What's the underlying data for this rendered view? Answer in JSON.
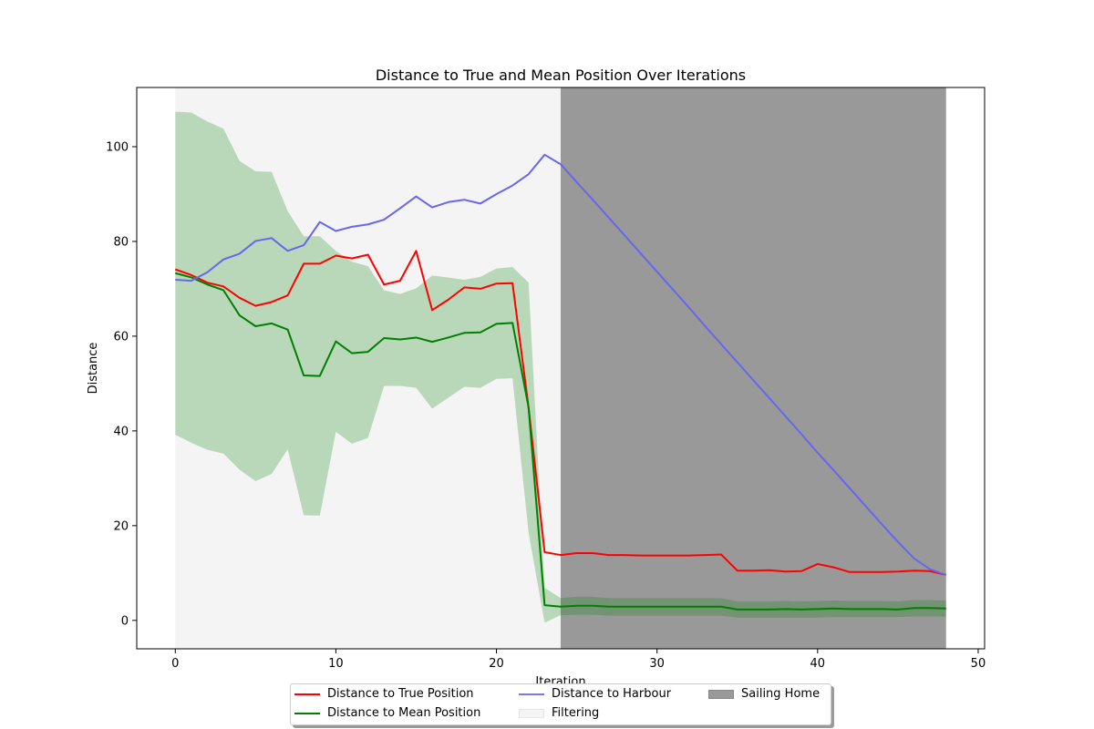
{
  "chart_data": {
    "type": "line",
    "title": "Distance to True and Mean Position Over Iterations",
    "xlabel": "Iteration",
    "ylabel": "Distance",
    "xlim": [
      -2.4,
      50.4
    ],
    "ylim": [
      -6,
      112.5
    ],
    "xticks": [
      0,
      10,
      20,
      30,
      40,
      50
    ],
    "yticks": [
      0,
      20,
      40,
      60,
      80,
      100
    ],
    "x": [
      0,
      1,
      2,
      3,
      4,
      5,
      6,
      7,
      8,
      9,
      10,
      11,
      12,
      13,
      14,
      15,
      16,
      17,
      18,
      19,
      20,
      21,
      22,
      23,
      24,
      25,
      26,
      27,
      28,
      29,
      30,
      31,
      32,
      33,
      34,
      35,
      36,
      37,
      38,
      39,
      40,
      41,
      42,
      43,
      44,
      45,
      46,
      47,
      48
    ],
    "series": [
      {
        "name": "Distance to True Position",
        "color": "#ff0000",
        "kind": "line",
        "values": [
          74.1,
          72.9,
          71.3,
          70.5,
          68.1,
          66.4,
          67.2,
          68.6,
          75.3,
          75.3,
          77.0,
          76.4,
          77.2,
          70.9,
          71.7,
          78.0,
          65.5,
          67.7,
          70.3,
          70.0,
          71.1,
          71.2,
          45.0,
          14.4,
          13.8,
          14.2,
          14.2,
          13.8,
          13.8,
          13.7,
          13.7,
          13.7,
          13.7,
          13.8,
          13.9,
          10.5,
          10.5,
          10.6,
          10.3,
          10.4,
          11.9,
          11.2,
          10.2,
          10.2,
          10.2,
          10.3,
          10.5,
          10.4,
          9.6
        ]
      },
      {
        "name": "Distance to Mean Position",
        "color": "#008000",
        "kind": "line",
        "values": [
          73.3,
          72.4,
          70.9,
          69.7,
          64.4,
          62.1,
          62.7,
          61.4,
          51.7,
          51.6,
          58.9,
          56.4,
          56.7,
          59.6,
          59.3,
          59.7,
          58.8,
          59.7,
          60.7,
          60.8,
          62.6,
          62.8,
          45.0,
          3.2,
          2.9,
          3.1,
          3.1,
          2.9,
          2.9,
          2.9,
          2.9,
          2.9,
          2.9,
          2.9,
          2.9,
          2.3,
          2.3,
          2.3,
          2.4,
          2.3,
          2.4,
          2.5,
          2.4,
          2.4,
          2.4,
          2.3,
          2.6,
          2.6,
          2.5
        ]
      },
      {
        "name": "Distance to Harbour",
        "color": "#6666ee",
        "kind": "line",
        "values": [
          71.9,
          71.7,
          73.5,
          76.2,
          77.4,
          80.1,
          80.7,
          78.0,
          79.2,
          84.1,
          82.2,
          83.1,
          83.6,
          84.6,
          87.0,
          89.5,
          87.2,
          88.3,
          88.8,
          88.0,
          90.0,
          91.8,
          94.2,
          98.3,
          96.3,
          92.5,
          88.8,
          85.0,
          81.2,
          77.4,
          73.6,
          69.8,
          66.0,
          62.1,
          58.3,
          54.5,
          50.7,
          46.9,
          43.1,
          39.3,
          35.4,
          31.7,
          27.9,
          24.1,
          20.3,
          16.6,
          13.1,
          10.8,
          9.6
        ]
      }
    ],
    "band": {
      "color": "#008000",
      "opacity": 0.24,
      "lower": [
        39.2,
        37.5,
        36.0,
        35.2,
        31.8,
        29.4,
        30.9,
        36.1,
        22.2,
        22.1,
        39.8,
        37.3,
        38.5,
        49.5,
        49.5,
        49.1,
        44.7,
        47.0,
        49.3,
        49.1,
        51.0,
        51.1,
        18.5,
        -0.5,
        1.1,
        1.2,
        1.2,
        1.0,
        1.0,
        1.0,
        1.0,
        1.0,
        1.0,
        1.0,
        1.0,
        0.6,
        0.6,
        0.6,
        0.6,
        0.6,
        0.6,
        0.7,
        0.7,
        0.7,
        0.7,
        0.7,
        0.8,
        0.8,
        0.8
      ],
      "upper": [
        107.4,
        107.2,
        105.3,
        103.8,
        97.0,
        94.8,
        94.7,
        86.4,
        81.1,
        81.1,
        78.0,
        75.7,
        74.8,
        69.7,
        68.9,
        70.1,
        72.8,
        72.4,
        71.9,
        72.5,
        74.3,
        74.6,
        71.3,
        6.9,
        4.7,
        5.0,
        5.0,
        4.7,
        4.7,
        4.7,
        4.7,
        4.7,
        4.7,
        4.7,
        4.7,
        4.0,
        4.0,
        4.0,
        4.1,
        4.0,
        4.1,
        4.2,
        4.1,
        4.1,
        4.1,
        4.0,
        4.3,
        4.3,
        4.2
      ]
    },
    "spans": [
      {
        "name": "Filtering",
        "from": 0,
        "to": 24,
        "color": "#f4f4f4"
      },
      {
        "name": "Sailing Home",
        "from": 24,
        "to": 48,
        "color": "#999999"
      }
    ],
    "legend_placement": "bottom-center",
    "grid": false
  },
  "legend": [
    {
      "label": "Distance to True Position",
      "kind": "line",
      "color": "#ff0000"
    },
    {
      "label": "Distance to Mean Position",
      "kind": "line",
      "color": "#008000"
    },
    {
      "label": "Distance to Harbour",
      "kind": "line",
      "color": "#7777ee"
    },
    {
      "label": "Filtering",
      "kind": "patch",
      "color": "#f4f4f4"
    },
    {
      "label": "Sailing Home",
      "kind": "patch",
      "color": "#999999"
    }
  ]
}
